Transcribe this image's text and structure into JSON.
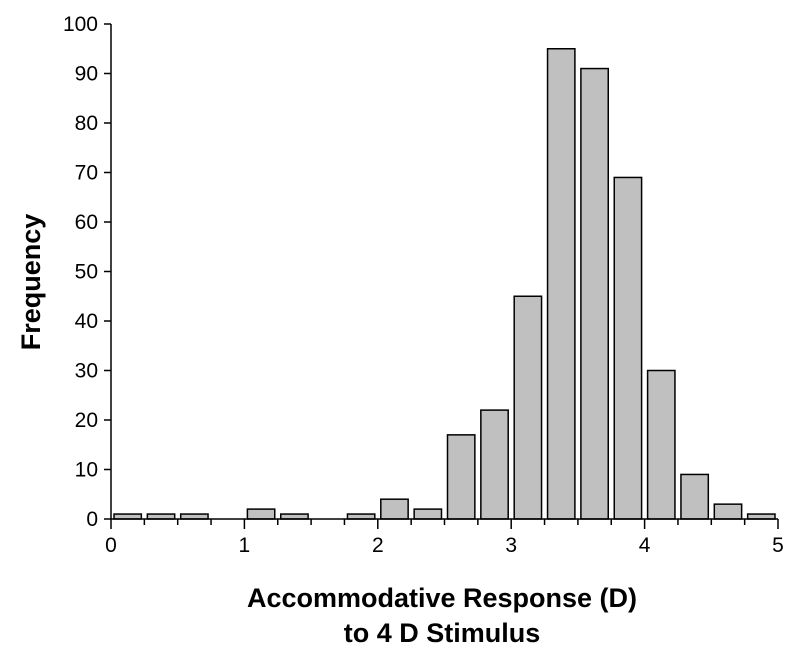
{
  "chart_data": {
    "type": "bar",
    "title": "",
    "xlabel": [
      "Accommodative Response (D)",
      "to 4 D Stimulus"
    ],
    "ylabel": "Frequency",
    "xlim": [
      0,
      5
    ],
    "ylim": [
      0,
      100
    ],
    "x_ticks": [
      "0",
      "1",
      "2",
      "3",
      "4",
      "5"
    ],
    "y_ticks": [
      "0",
      "10",
      "20",
      "30",
      "40",
      "50",
      "60",
      "70",
      "80",
      "90",
      "100"
    ],
    "bin_width": 0.25,
    "bin_starts": [
      0,
      0.25,
      0.5,
      0.75,
      1.0,
      1.25,
      1.5,
      1.75,
      2.0,
      2.25,
      2.5,
      2.75,
      3.0,
      3.25,
      3.5,
      3.75,
      4.0,
      4.25,
      4.5,
      4.75
    ],
    "values": [
      1,
      1,
      1,
      0,
      2,
      1,
      0,
      1,
      4,
      2,
      17,
      22,
      45,
      95,
      91,
      69,
      30,
      9,
      3,
      1
    ],
    "bar_color": "#c0c0c0",
    "bar_edge_color": "#000000",
    "grid": false,
    "legend": "none"
  }
}
